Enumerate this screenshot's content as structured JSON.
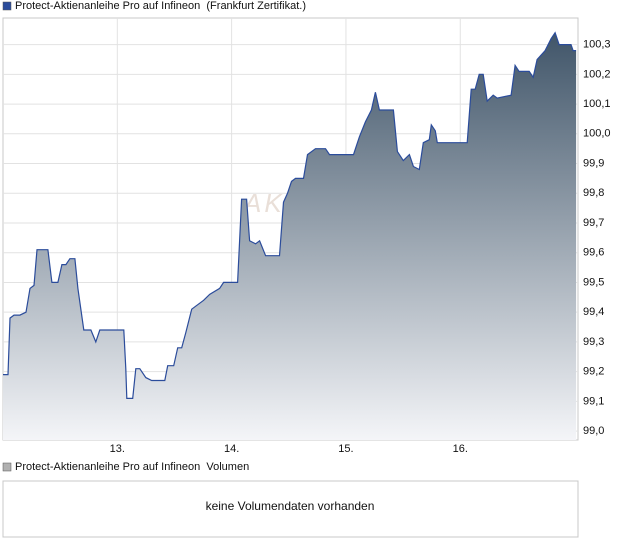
{
  "chart_data": {
    "type": "area",
    "series": [
      {
        "name": "Protect-Aktienanleihe Pro auf Infineon  (Frankfurt Zertifikat.)",
        "color": "#2b4c9b",
        "fill_top": "#3f5468",
        "fill_bottom": "#f4f5f8",
        "x": [
          12.0,
          12.044,
          12.061,
          12.096,
          12.148,
          12.201,
          12.236,
          12.271,
          12.297,
          12.393,
          12.428,
          12.48,
          12.515,
          12.55,
          12.585,
          12.629,
          12.655,
          12.707,
          12.769,
          12.812,
          12.847,
          13.057,
          13.074,
          13.083,
          13.135,
          13.162,
          13.197,
          13.249,
          13.301,
          13.415,
          13.441,
          13.493,
          13.528,
          13.563,
          13.598,
          13.651,
          13.686,
          13.755,
          13.808,
          13.895,
          13.93,
          14.052,
          14.087,
          14.131,
          14.157,
          14.21,
          14.245,
          14.297,
          14.419,
          14.454,
          14.489,
          14.524,
          14.559,
          14.629,
          14.664,
          14.734,
          14.821,
          14.856,
          15.066,
          15.118,
          15.17,
          15.223,
          15.258,
          15.293,
          15.415,
          15.45,
          15.502,
          15.555,
          15.59,
          15.642,
          15.677,
          15.729,
          15.747,
          15.782,
          15.799,
          15.869,
          16.061,
          16.096,
          16.131,
          16.166,
          16.201,
          16.236,
          16.288,
          16.323,
          16.445,
          16.48,
          16.515,
          16.603,
          16.638,
          16.672,
          16.742,
          16.795,
          16.83,
          16.865,
          16.969,
          16.987,
          17.013
        ],
        "values": [
          99.19,
          99.19,
          99.38,
          99.39,
          99.39,
          99.4,
          99.48,
          99.49,
          99.61,
          99.61,
          99.5,
          99.5,
          99.56,
          99.56,
          99.58,
          99.58,
          99.48,
          99.34,
          99.34,
          99.3,
          99.34,
          99.34,
          99.21,
          99.11,
          99.11,
          99.21,
          99.21,
          99.18,
          99.17,
          99.17,
          99.22,
          99.22,
          99.28,
          99.28,
          99.33,
          99.41,
          99.42,
          99.44,
          99.46,
          99.48,
          99.5,
          99.5,
          99.78,
          99.78,
          99.64,
          99.63,
          99.64,
          99.59,
          99.59,
          99.77,
          99.8,
          99.84,
          99.85,
          99.85,
          99.93,
          99.95,
          99.95,
          99.93,
          99.93,
          99.99,
          100.04,
          100.08,
          100.14,
          100.08,
          100.08,
          99.94,
          99.91,
          99.93,
          99.89,
          99.88,
          99.97,
          99.98,
          100.03,
          100.01,
          99.97,
          99.97,
          99.97,
          100.15,
          100.15,
          100.2,
          100.2,
          100.11,
          100.13,
          100.12,
          100.13,
          100.23,
          100.21,
          100.21,
          100.19,
          100.25,
          100.28,
          100.32,
          100.34,
          100.3,
          100.3,
          100.28,
          100.28
        ]
      }
    ],
    "watermark": "AKTIEN",
    "xlim": [
      12,
      17.03
    ],
    "xticks": [
      {
        "value": 13,
        "label": "13."
      },
      {
        "value": 14,
        "label": "14."
      },
      {
        "value": 15,
        "label": "15."
      },
      {
        "value": 16,
        "label": "16."
      }
    ],
    "ylim": [
      98.97,
      100.44
    ],
    "yticks": [
      {
        "value": 99.0,
        "label": "99,0"
      },
      {
        "value": 99.1,
        "label": "99,1"
      },
      {
        "value": 99.2,
        "label": "99,2"
      },
      {
        "value": 99.3,
        "label": "99,3"
      },
      {
        "value": 99.4,
        "label": "99,4"
      },
      {
        "value": 99.5,
        "label": "99,5"
      },
      {
        "value": 99.6,
        "label": "99,6"
      },
      {
        "value": 99.7,
        "label": "99,7"
      },
      {
        "value": 99.8,
        "label": "99,8"
      },
      {
        "value": 99.9,
        "label": "99,9"
      },
      {
        "value": 100.0,
        "label": "100,0"
      },
      {
        "value": 100.1,
        "label": "100,1"
      },
      {
        "value": 100.2,
        "label": "100,2"
      },
      {
        "value": 100.3,
        "label": "100,3"
      }
    ],
    "grid": true
  },
  "volume_panel": {
    "legend": "Protect-Aktienanleihe Pro auf Infineon  Volumen",
    "color": "#b0b0b0",
    "message": "keine Volumendaten vorhanden"
  }
}
